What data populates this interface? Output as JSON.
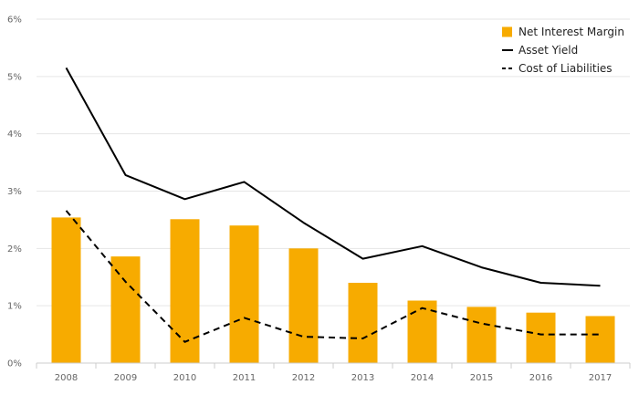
{
  "chart_data": {
    "type": "bar",
    "categories": [
      "2008",
      "2009",
      "2010",
      "2011",
      "2012",
      "2013",
      "2014",
      "2015",
      "2016",
      "2017"
    ],
    "series": [
      {
        "name": "Net Interest Margin",
        "type": "bar",
        "color": "#F7AB00",
        "values": [
          2.54,
          1.86,
          2.51,
          2.4,
          2.0,
          1.4,
          1.09,
          0.98,
          0.88,
          0.82
        ]
      },
      {
        "name": "Asset Yield",
        "type": "line",
        "style": "solid",
        "color": "#000000",
        "values": [
          5.15,
          3.28,
          2.86,
          3.16,
          2.45,
          1.82,
          2.04,
          1.67,
          1.4,
          1.35
        ]
      },
      {
        "name": "Cost of Liabilities",
        "type": "line",
        "style": "dashed",
        "color": "#000000",
        "values": [
          2.66,
          1.42,
          0.37,
          0.79,
          0.46,
          0.43,
          0.96,
          0.69,
          0.5,
          0.5
        ]
      }
    ],
    "ylim": [
      0,
      6
    ],
    "yticks": [
      0,
      1,
      2,
      3,
      4,
      5,
      6
    ],
    "ytick_labels": [
      "0%",
      "1%",
      "2%",
      "3%",
      "4%",
      "5%",
      "6%"
    ],
    "title": "",
    "xlabel": "",
    "ylabel": "",
    "grid": true,
    "legend_position": "top-right"
  }
}
